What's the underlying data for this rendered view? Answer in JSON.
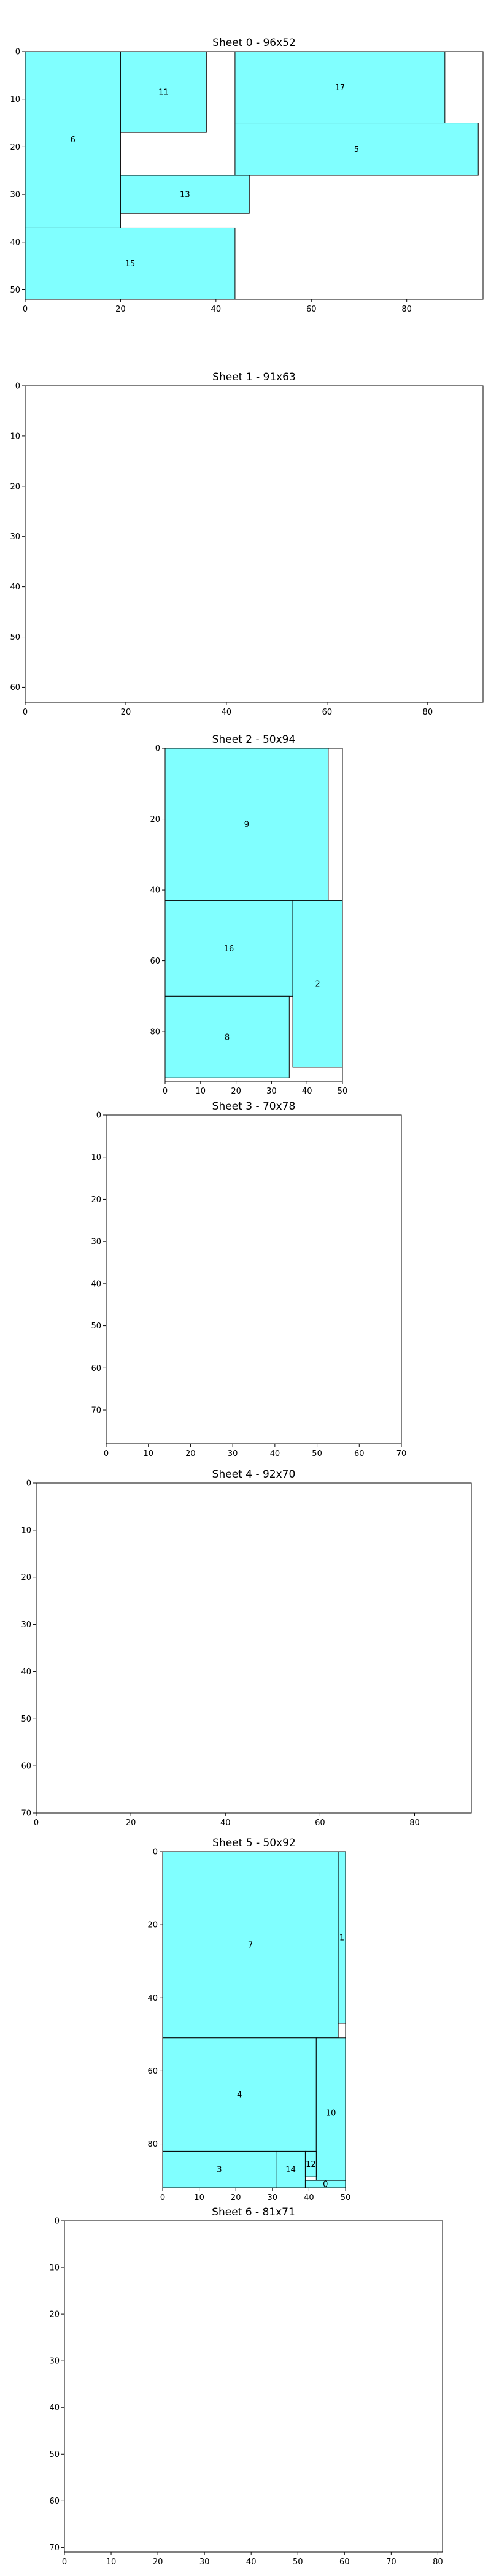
{
  "colors": {
    "piece_fill": "#80ffff",
    "piece_edge": "#000000",
    "axes_edge": "#000000",
    "background": "#ffffff"
  },
  "chart_data": [
    {
      "type": "cutting-stock-layout",
      "title": "Sheet 0 - 96x52",
      "sheet": {
        "width": 96,
        "height": 52
      },
      "xlim": [
        0,
        96
      ],
      "ylim": [
        52,
        0
      ],
      "xticks": [
        0,
        20,
        40,
        60,
        80
      ],
      "yticks": [
        0,
        10,
        20,
        30,
        40,
        50
      ],
      "pieces": [
        {
          "id": "6",
          "x": 0,
          "y": 0,
          "w": 20,
          "h": 37
        },
        {
          "id": "11",
          "x": 20,
          "y": 0,
          "w": 18,
          "h": 17
        },
        {
          "id": "17",
          "x": 44,
          "y": 0,
          "w": 44,
          "h": 15
        },
        {
          "id": "5",
          "x": 44,
          "y": 15,
          "w": 51,
          "h": 11
        },
        {
          "id": "13",
          "x": 20,
          "y": 26,
          "w": 27,
          "h": 8
        },
        {
          "id": "15",
          "x": 0,
          "y": 37,
          "w": 44,
          "h": 15
        }
      ]
    },
    {
      "type": "cutting-stock-layout",
      "title": "Sheet 1 - 91x63",
      "sheet": {
        "width": 91,
        "height": 63
      },
      "xlim": [
        0,
        91
      ],
      "ylim": [
        63,
        0
      ],
      "xticks": [
        0,
        20,
        40,
        60,
        80
      ],
      "yticks": [
        0,
        10,
        20,
        30,
        40,
        50,
        60
      ],
      "pieces": []
    },
    {
      "type": "cutting-stock-layout",
      "title": "Sheet 2 - 50x94",
      "sheet": {
        "width": 50,
        "height": 94
      },
      "xlim": [
        0,
        50
      ],
      "ylim": [
        94,
        0
      ],
      "xticks": [
        0,
        10,
        20,
        30,
        40,
        50
      ],
      "yticks": [
        0,
        20,
        40,
        60,
        80
      ],
      "pieces": [
        {
          "id": "9",
          "x": 0,
          "y": 0,
          "w": 46,
          "h": 43
        },
        {
          "id": "16",
          "x": 0,
          "y": 43,
          "w": 36,
          "h": 27
        },
        {
          "id": "2",
          "x": 36,
          "y": 43,
          "w": 14,
          "h": 47
        },
        {
          "id": "8",
          "x": 0,
          "y": 70,
          "w": 35,
          "h": 23
        }
      ]
    },
    {
      "type": "cutting-stock-layout",
      "title": "Sheet 3 - 70x78",
      "sheet": {
        "width": 70,
        "height": 78
      },
      "xlim": [
        0,
        70
      ],
      "ylim": [
        78,
        0
      ],
      "xticks": [
        0,
        10,
        20,
        30,
        40,
        50,
        60,
        70
      ],
      "yticks": [
        0,
        10,
        20,
        30,
        40,
        50,
        60,
        70
      ],
      "pieces": []
    },
    {
      "type": "cutting-stock-layout",
      "title": "Sheet 4 - 92x70",
      "sheet": {
        "width": 92,
        "height": 70
      },
      "xlim": [
        0,
        92
      ],
      "ylim": [
        70,
        0
      ],
      "xticks": [
        0,
        20,
        40,
        60,
        80
      ],
      "yticks": [
        0,
        10,
        20,
        30,
        40,
        50,
        60,
        70
      ],
      "pieces": []
    },
    {
      "type": "cutting-stock-layout",
      "title": "Sheet 5 - 50x92",
      "sheet": {
        "width": 50,
        "height": 92
      },
      "xlim": [
        0,
        50
      ],
      "ylim": [
        92,
        0
      ],
      "xticks": [
        0,
        10,
        20,
        30,
        40,
        50
      ],
      "yticks": [
        0,
        20,
        40,
        60,
        80
      ],
      "pieces": [
        {
          "id": "7",
          "x": 0,
          "y": 0,
          "w": 48,
          "h": 51
        },
        {
          "id": "1",
          "x": 48,
          "y": 0,
          "w": 2,
          "h": 47
        },
        {
          "id": "4",
          "x": 0,
          "y": 51,
          "w": 42,
          "h": 31
        },
        {
          "id": "10",
          "x": 42,
          "y": 51,
          "w": 8,
          "h": 41
        },
        {
          "id": "3",
          "x": 0,
          "y": 82,
          "w": 31,
          "h": 10
        },
        {
          "id": "14",
          "x": 31,
          "y": 82,
          "w": 8,
          "h": 10
        },
        {
          "id": "12",
          "x": 39,
          "y": 82,
          "w": 3,
          "h": 7
        },
        {
          "id": "0",
          "x": 39,
          "y": 90,
          "w": 11,
          "h": 2
        }
      ]
    },
    {
      "type": "cutting-stock-layout",
      "title": "Sheet 6 - 81x71",
      "sheet": {
        "width": 81,
        "height": 71
      },
      "xlim": [
        0,
        81
      ],
      "ylim": [
        71,
        0
      ],
      "xticks": [
        0,
        10,
        20,
        30,
        40,
        50,
        60,
        70,
        80
      ],
      "yticks": [
        0,
        10,
        20,
        30,
        40,
        50,
        60,
        70
      ],
      "pieces": []
    }
  ]
}
